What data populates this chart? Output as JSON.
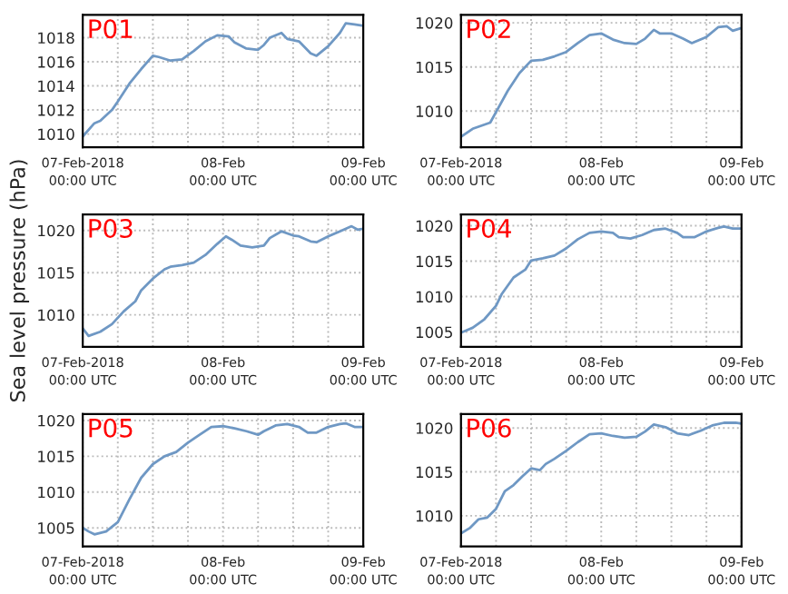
{
  "chart_data": [
    {
      "type": "line",
      "title": "P01",
      "xlim": [
        "2018-02-07T00:00",
        "2018-02-09T00:00"
      ],
      "ylim": [
        1008.9,
        1019.9
      ],
      "yticks": [
        1010,
        1012,
        1014,
        1016,
        1018
      ],
      "grid": true,
      "xticks": [
        {
          "value": "2018-02-07T00:00",
          "label": "07-Feb-2018\n00:00 UTC"
        },
        {
          "value": "2018-02-07T06:00",
          "label": null
        },
        {
          "value": "2018-02-07T12:00",
          "label": null
        },
        {
          "value": "2018-02-07T18:00",
          "label": null
        },
        {
          "value": "2018-02-08T00:00",
          "label": "08-Feb\n00:00 UTC"
        },
        {
          "value": "2018-02-08T06:00",
          "label": null
        },
        {
          "value": "2018-02-08T12:00",
          "label": null
        },
        {
          "value": "2018-02-08T18:00",
          "label": null
        },
        {
          "value": "2018-02-09T00:00",
          "label": "09-Feb\n00:00 UTC"
        }
      ],
      "series": [
        {
          "color": "#6f98c4",
          "x": [
            "2018-02-07T00:00",
            "2018-02-07T02:00",
            "2018-02-07T03:00",
            "2018-02-07T05:00",
            "2018-02-07T06:00",
            "2018-02-07T08:00",
            "2018-02-07T10:00",
            "2018-02-07T12:00",
            "2018-02-07T13:00",
            "2018-02-07T15:00",
            "2018-02-07T17:00",
            "2018-02-07T19:00",
            "2018-02-07T21:00",
            "2018-02-07T23:00",
            "2018-02-08T01:00",
            "2018-02-08T02:00",
            "2018-02-08T04:00",
            "2018-02-08T06:00",
            "2018-02-08T07:00",
            "2018-02-08T08:00",
            "2018-02-08T10:00",
            "2018-02-08T11:00",
            "2018-02-08T13:00",
            "2018-02-08T15:00",
            "2018-02-08T16:00",
            "2018-02-08T18:00",
            "2018-02-08T20:00",
            "2018-02-08T21:00",
            "2018-02-08T22:30",
            "2018-02-09T00:00"
          ],
          "values": [
            1009.8,
            1010.9,
            1011.1,
            1012.0,
            1012.7,
            1014.2,
            1015.4,
            1016.5,
            1016.4,
            1016.1,
            1016.2,
            1016.9,
            1017.7,
            1018.2,
            1018.1,
            1017.6,
            1017.1,
            1017.0,
            1017.4,
            1018.0,
            1018.4,
            1017.9,
            1017.7,
            1016.7,
            1016.5,
            1017.3,
            1018.4,
            1019.2,
            1019.1,
            1019.0
          ]
        }
      ]
    },
    {
      "type": "line",
      "title": "P02",
      "xlim": [
        "2018-02-07T00:00",
        "2018-02-09T00:00"
      ],
      "ylim": [
        1005.9,
        1020.9
      ],
      "yticks": [
        1010,
        1015,
        1020
      ],
      "grid": true,
      "xticks": [
        {
          "value": "2018-02-07T00:00",
          "label": "07-Feb-2018\n00:00 UTC"
        },
        {
          "value": "2018-02-07T06:00",
          "label": null
        },
        {
          "value": "2018-02-07T12:00",
          "label": null
        },
        {
          "value": "2018-02-07T18:00",
          "label": null
        },
        {
          "value": "2018-02-08T00:00",
          "label": "08-Feb\n00:00 UTC"
        },
        {
          "value": "2018-02-08T06:00",
          "label": null
        },
        {
          "value": "2018-02-08T12:00",
          "label": null
        },
        {
          "value": "2018-02-08T18:00",
          "label": null
        },
        {
          "value": "2018-02-09T00:00",
          "label": "09-Feb\n00:00 UTC"
        }
      ],
      "series": [
        {
          "color": "#6f98c4",
          "x": [
            "2018-02-07T00:00",
            "2018-02-07T02:00",
            "2018-02-07T05:00",
            "2018-02-07T06:00",
            "2018-02-07T08:00",
            "2018-02-07T10:00",
            "2018-02-07T12:00",
            "2018-02-07T14:00",
            "2018-02-07T16:00",
            "2018-02-07T18:00",
            "2018-02-07T20:00",
            "2018-02-07T22:00",
            "2018-02-08T00:00",
            "2018-02-08T02:00",
            "2018-02-08T04:00",
            "2018-02-08T06:00",
            "2018-02-08T07:30",
            "2018-02-08T09:00",
            "2018-02-08T10:00",
            "2018-02-08T12:00",
            "2018-02-08T14:00",
            "2018-02-08T15:30",
            "2018-02-08T18:00",
            "2018-02-08T20:00",
            "2018-02-08T21:30",
            "2018-02-08T22:30",
            "2018-02-09T00:00"
          ],
          "values": [
            1007.1,
            1008.0,
            1008.7,
            1009.9,
            1012.3,
            1014.3,
            1015.7,
            1015.8,
            1016.2,
            1016.7,
            1017.7,
            1018.6,
            1018.8,
            1018.1,
            1017.7,
            1017.6,
            1018.2,
            1019.2,
            1018.8,
            1018.8,
            1018.2,
            1017.7,
            1018.4,
            1019.5,
            1019.6,
            1019.1,
            1019.4
          ]
        }
      ]
    },
    {
      "type": "line",
      "title": "P03",
      "ylabel": "Sea level pressure (hPa)",
      "xlim": [
        "2018-02-07T00:00",
        "2018-02-09T00:00"
      ],
      "ylim": [
        1006.2,
        1021.9
      ],
      "yticks": [
        1010,
        1015,
        1020
      ],
      "grid": true,
      "xticks": [
        {
          "value": "2018-02-07T00:00",
          "label": "07-Feb-2018\n00:00 UTC"
        },
        {
          "value": "2018-02-07T06:00",
          "label": null
        },
        {
          "value": "2018-02-07T12:00",
          "label": null
        },
        {
          "value": "2018-02-07T18:00",
          "label": null
        },
        {
          "value": "2018-02-08T00:00",
          "label": "08-Feb\n00:00 UTC"
        },
        {
          "value": "2018-02-08T06:00",
          "label": null
        },
        {
          "value": "2018-02-08T12:00",
          "label": null
        },
        {
          "value": "2018-02-08T18:00",
          "label": null
        },
        {
          "value": "2018-02-09T00:00",
          "label": "09-Feb\n00:00 UTC"
        }
      ],
      "series": [
        {
          "color": "#6f98c4",
          "x": [
            "2018-02-07T00:00",
            "2018-02-07T01:00",
            "2018-02-07T03:00",
            "2018-02-07T05:00",
            "2018-02-07T07:00",
            "2018-02-07T09:00",
            "2018-02-07T10:00",
            "2018-02-07T12:00",
            "2018-02-07T14:00",
            "2018-02-07T15:00",
            "2018-02-07T17:00",
            "2018-02-07T19:00",
            "2018-02-07T21:00",
            "2018-02-07T23:00",
            "2018-02-08T00:30",
            "2018-02-08T01:30",
            "2018-02-08T03:00",
            "2018-02-08T05:00",
            "2018-02-08T07:00",
            "2018-02-08T08:00",
            "2018-02-08T10:00",
            "2018-02-08T12:00",
            "2018-02-08T13:00",
            "2018-02-08T15:00",
            "2018-02-08T16:00",
            "2018-02-08T18:00",
            "2018-02-08T20:00",
            "2018-02-08T22:00",
            "2018-02-08T23:00",
            "2018-02-09T00:00"
          ],
          "values": [
            1008.4,
            1007.5,
            1008.0,
            1008.9,
            1010.4,
            1011.6,
            1012.9,
            1014.3,
            1015.4,
            1015.7,
            1015.9,
            1016.2,
            1017.1,
            1018.4,
            1019.3,
            1018.9,
            1018.2,
            1018.0,
            1018.2,
            1019.1,
            1019.9,
            1019.4,
            1019.3,
            1018.7,
            1018.6,
            1019.3,
            1019.9,
            1020.5,
            1020.1,
            1020.2
          ]
        }
      ]
    },
    {
      "type": "line",
      "title": "P04",
      "xlim": [
        "2018-02-07T00:00",
        "2018-02-09T00:00"
      ],
      "ylim": [
        1002.9,
        1021.6
      ],
      "yticks": [
        1005,
        1010,
        1015,
        1020
      ],
      "grid": true,
      "xticks": [
        {
          "value": "2018-02-07T00:00",
          "label": "07-Feb-2018\n00:00 UTC"
        },
        {
          "value": "2018-02-07T06:00",
          "label": null
        },
        {
          "value": "2018-02-07T12:00",
          "label": null
        },
        {
          "value": "2018-02-07T18:00",
          "label": null
        },
        {
          "value": "2018-02-08T00:00",
          "label": "08-Feb\n00:00 UTC"
        },
        {
          "value": "2018-02-08T06:00",
          "label": null
        },
        {
          "value": "2018-02-08T12:00",
          "label": null
        },
        {
          "value": "2018-02-08T18:00",
          "label": null
        },
        {
          "value": "2018-02-09T00:00",
          "label": "09-Feb\n00:00 UTC"
        }
      ],
      "series": [
        {
          "color": "#6f98c4",
          "x": [
            "2018-02-07T00:00",
            "2018-02-07T02:00",
            "2018-02-07T04:00",
            "2018-02-07T06:00",
            "2018-02-07T07:00",
            "2018-02-07T09:00",
            "2018-02-07T11:00",
            "2018-02-07T12:00",
            "2018-02-07T14:00",
            "2018-02-07T16:00",
            "2018-02-07T18:00",
            "2018-02-07T20:00",
            "2018-02-07T22:00",
            "2018-02-08T00:00",
            "2018-02-08T02:00",
            "2018-02-08T03:00",
            "2018-02-08T05:00",
            "2018-02-08T07:00",
            "2018-02-08T09:00",
            "2018-02-08T11:00",
            "2018-02-08T13:00",
            "2018-02-08T14:00",
            "2018-02-08T16:00",
            "2018-02-08T18:00",
            "2018-02-08T20:00",
            "2018-02-08T21:00",
            "2018-02-08T22:30",
            "2018-02-09T00:00"
          ],
          "values": [
            1004.9,
            1005.6,
            1006.8,
            1008.7,
            1010.4,
            1012.7,
            1013.8,
            1015.1,
            1015.4,
            1015.8,
            1016.8,
            1018.1,
            1019.0,
            1019.2,
            1019.0,
            1018.4,
            1018.2,
            1018.7,
            1019.4,
            1019.6,
            1019.0,
            1018.4,
            1018.4,
            1019.2,
            1019.7,
            1019.9,
            1019.6,
            1019.6
          ]
        }
      ]
    },
    {
      "type": "line",
      "title": "P05",
      "xlim": [
        "2018-02-07T00:00",
        "2018-02-09T00:00"
      ],
      "ylim": [
        1002.4,
        1020.9
      ],
      "yticks": [
        1005,
        1010,
        1015,
        1020
      ],
      "grid": true,
      "xticks": [
        {
          "value": "2018-02-07T00:00",
          "label": "07-Feb-2018\n00:00 UTC"
        },
        {
          "value": "2018-02-07T06:00",
          "label": null
        },
        {
          "value": "2018-02-07T12:00",
          "label": null
        },
        {
          "value": "2018-02-07T18:00",
          "label": null
        },
        {
          "value": "2018-02-08T00:00",
          "label": "08-Feb\n00:00 UTC"
        },
        {
          "value": "2018-02-08T06:00",
          "label": null
        },
        {
          "value": "2018-02-08T12:00",
          "label": null
        },
        {
          "value": "2018-02-08T18:00",
          "label": null
        },
        {
          "value": "2018-02-09T00:00",
          "label": "09-Feb\n00:00 UTC"
        }
      ],
      "series": [
        {
          "color": "#6f98c4",
          "x": [
            "2018-02-07T00:00",
            "2018-02-07T01:00",
            "2018-02-07T02:00",
            "2018-02-07T04:00",
            "2018-02-07T06:00",
            "2018-02-07T08:00",
            "2018-02-07T10:00",
            "2018-02-07T12:00",
            "2018-02-07T14:00",
            "2018-02-07T16:00",
            "2018-02-07T18:00",
            "2018-02-07T20:00",
            "2018-02-07T22:00",
            "2018-02-08T00:00",
            "2018-02-08T02:00",
            "2018-02-08T04:00",
            "2018-02-08T06:00",
            "2018-02-08T07:00",
            "2018-02-08T09:00",
            "2018-02-08T11:00",
            "2018-02-08T13:00",
            "2018-02-08T14:30",
            "2018-02-08T16:00",
            "2018-02-08T18:00",
            "2018-02-08T20:00",
            "2018-02-08T21:00",
            "2018-02-08T22:30",
            "2018-02-09T00:00"
          ],
          "values": [
            1005.0,
            1004.5,
            1004.1,
            1004.5,
            1005.8,
            1009.0,
            1012.0,
            1013.9,
            1015.0,
            1015.6,
            1016.9,
            1018.0,
            1019.1,
            1019.2,
            1018.9,
            1018.5,
            1018.0,
            1018.5,
            1019.3,
            1019.5,
            1019.1,
            1018.3,
            1018.3,
            1019.1,
            1019.5,
            1019.6,
            1019.1,
            1019.1
          ]
        }
      ]
    },
    {
      "type": "line",
      "title": "P06",
      "xlim": [
        "2018-02-07T00:00",
        "2018-02-09T00:00"
      ],
      "ylim": [
        1006.5,
        1021.6
      ],
      "yticks": [
        1010,
        1015,
        1020
      ],
      "grid": true,
      "xticks": [
        {
          "value": "2018-02-07T00:00",
          "label": "07-Feb-2018\n00:00 UTC"
        },
        {
          "value": "2018-02-07T06:00",
          "label": null
        },
        {
          "value": "2018-02-07T12:00",
          "label": null
        },
        {
          "value": "2018-02-07T18:00",
          "label": null
        },
        {
          "value": "2018-02-08T00:00",
          "label": "08-Feb\n00:00 UTC"
        },
        {
          "value": "2018-02-08T06:00",
          "label": null
        },
        {
          "value": "2018-02-08T12:00",
          "label": null
        },
        {
          "value": "2018-02-08T18:00",
          "label": null
        },
        {
          "value": "2018-02-09T00:00",
          "label": "09-Feb\n00:00 UTC"
        }
      ],
      "series": [
        {
          "color": "#6f98c4",
          "x": [
            "2018-02-07T00:00",
            "2018-02-07T01:30",
            "2018-02-07T03:00",
            "2018-02-07T04:30",
            "2018-02-07T06:00",
            "2018-02-07T07:30",
            "2018-02-07T09:00",
            "2018-02-07T10:30",
            "2018-02-07T12:00",
            "2018-02-07T13:30",
            "2018-02-07T14:30",
            "2018-02-07T16:00",
            "2018-02-07T18:00",
            "2018-02-07T20:00",
            "2018-02-07T22:00",
            "2018-02-08T00:00",
            "2018-02-08T02:00",
            "2018-02-08T04:00",
            "2018-02-08T06:00",
            "2018-02-08T07:30",
            "2018-02-08T09:00",
            "2018-02-08T11:00",
            "2018-02-08T13:00",
            "2018-02-08T15:00",
            "2018-02-08T17:00",
            "2018-02-08T19:00",
            "2018-02-08T21:00",
            "2018-02-08T23:00",
            "2018-02-09T00:00"
          ],
          "values": [
            1008.0,
            1008.6,
            1009.6,
            1009.8,
            1010.8,
            1012.8,
            1013.5,
            1014.5,
            1015.4,
            1015.2,
            1015.9,
            1016.5,
            1017.4,
            1018.4,
            1019.3,
            1019.4,
            1019.1,
            1018.9,
            1019.0,
            1019.6,
            1020.4,
            1020.1,
            1019.4,
            1019.2,
            1019.7,
            1020.3,
            1020.6,
            1020.6,
            1020.5
          ]
        }
      ]
    }
  ]
}
